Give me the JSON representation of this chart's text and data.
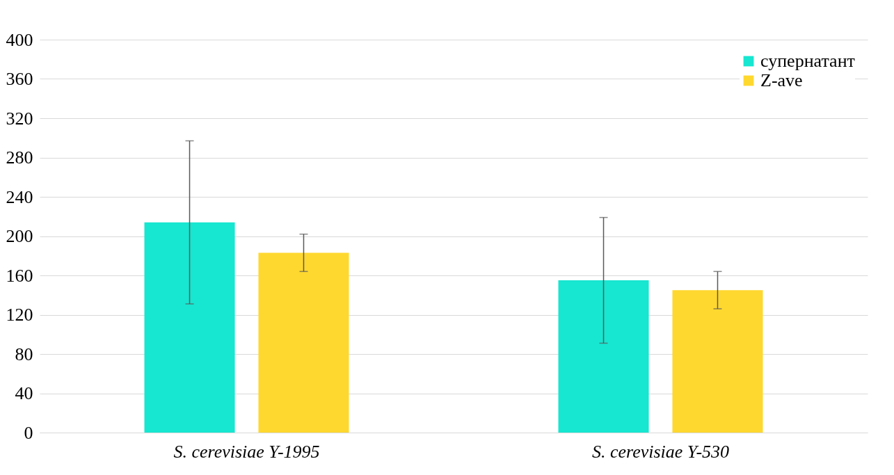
{
  "chart_data": {
    "type": "bar",
    "categories": [
      "S. cerevisiae Y-1995",
      "S. cerevisiae Y-530"
    ],
    "series": [
      {
        "name": "супернатант",
        "color": "#17e6d0",
        "values": [
          214,
          155
        ],
        "errors": [
          83,
          64
        ]
      },
      {
        "name": "Z-ave",
        "color": "#ffd82f",
        "values": [
          183,
          145
        ],
        "errors": [
          19,
          19
        ]
      }
    ],
    "ylim": [
      0,
      400
    ],
    "yticks": [
      0,
      40,
      80,
      120,
      160,
      200,
      240,
      280,
      320,
      360,
      400
    ],
    "grid": "y",
    "legend": "top right"
  }
}
